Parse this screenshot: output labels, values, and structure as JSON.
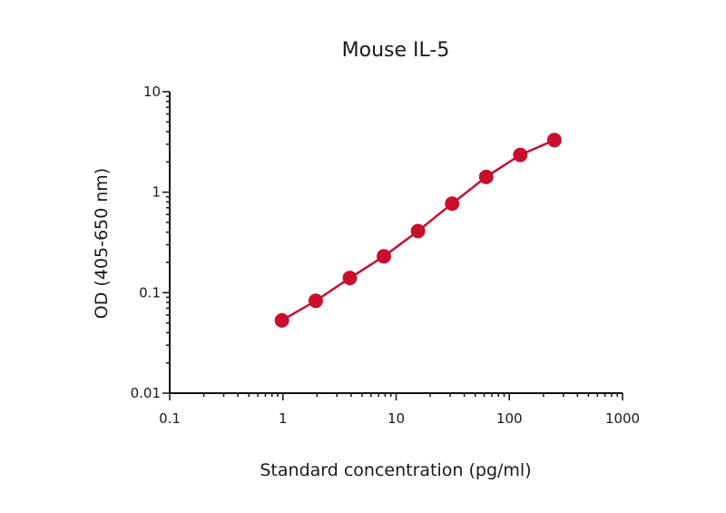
{
  "chart_data": {
    "type": "scatter",
    "title": "Mouse IL-5",
    "xlabel": "Standard concentration (pg/ml)",
    "ylabel": "OD (405-650 nm)",
    "x_scale": "log",
    "y_scale": "log",
    "xlim": [
      0.1,
      1000
    ],
    "ylim": [
      0.01,
      10
    ],
    "x_ticks": [
      {
        "value": 0.1,
        "label": "0.1"
      },
      {
        "value": 1,
        "label": "1"
      },
      {
        "value": 10,
        "label": "10"
      },
      {
        "value": 100,
        "label": "100"
      },
      {
        "value": 1000,
        "label": "1000"
      }
    ],
    "y_ticks": [
      {
        "value": 0.01,
        "label": "0.01"
      },
      {
        "value": 0.1,
        "label": "0.1"
      },
      {
        "value": 1,
        "label": "1"
      },
      {
        "value": 10,
        "label": "10"
      }
    ],
    "grid": false,
    "legend": "none",
    "series": [
      {
        "color": "#c8102e",
        "x": [
          0.98,
          1.95,
          3.9,
          7.8,
          15.6,
          31.25,
          62.5,
          125,
          250
        ],
        "y": [
          0.053,
          0.083,
          0.14,
          0.23,
          0.41,
          0.77,
          1.42,
          2.35,
          3.3
        ]
      }
    ]
  }
}
